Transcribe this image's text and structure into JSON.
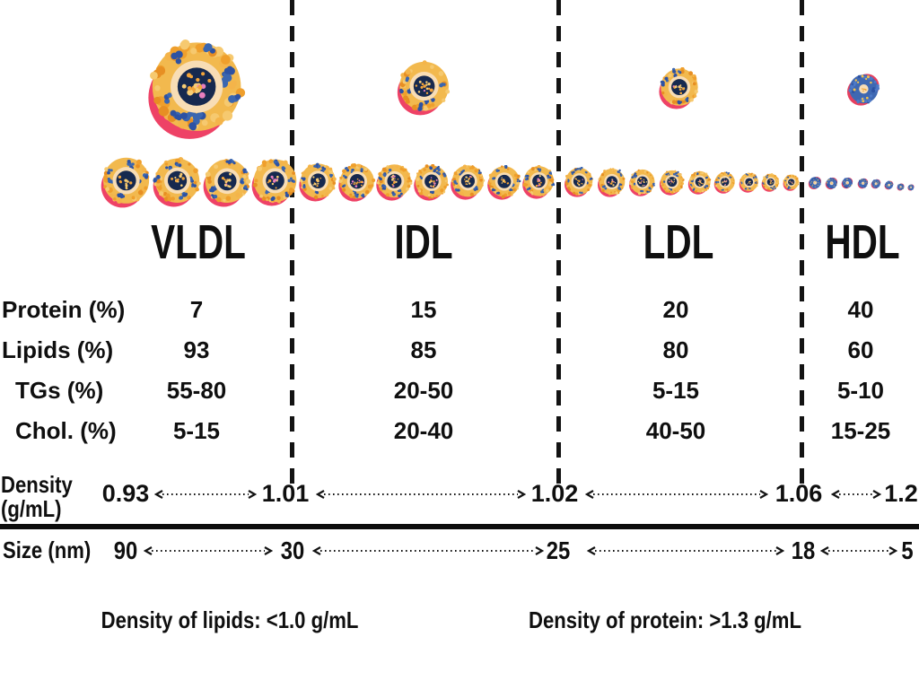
{
  "columns": [
    {
      "name": "VLDL",
      "protein": "7",
      "lipids": "93",
      "tgs": "55-80",
      "chol": "5-15"
    },
    {
      "name": "IDL",
      "protein": "15",
      "lipids": "85",
      "tgs": "20-50",
      "chol": "20-40"
    },
    {
      "name": "LDL",
      "protein": "20",
      "lipids": "80",
      "tgs": "5-15",
      "chol": "40-50"
    },
    {
      "name": "HDL",
      "protein": "40",
      "lipids": "60",
      "tgs": "5-10",
      "chol": "15-25"
    }
  ],
  "row_labels": {
    "protein": "Protein (%)",
    "lipids": "Lipids (%)",
    "tgs": "TGs (%)",
    "chol": "Chol. (%)"
  },
  "density_scale": {
    "label_line1": "Density",
    "label_line2": "(g/mL)",
    "values": [
      "0.93",
      "1.01",
      "1.02",
      "1.06",
      "1.2"
    ]
  },
  "size_scale": {
    "label": "Size (nm)",
    "values": [
      "90",
      "30",
      "25",
      "18",
      "5"
    ]
  },
  "footnotes": {
    "lipids": "Density of lipids: <1.0 g/mL",
    "protein": "Density of protein: >1.3 g/mL"
  },
  "icon_colors": {
    "lipoprotein_body": "#f2b94e",
    "lipoprotein_outer_dots": "#ef9f2c",
    "protein_blue": "#3a66b0",
    "inner_ring_tan": "#f8ddb5",
    "core_navy": "#16294f",
    "apolipoprotein_pink": "#ee4266",
    "hdl_body_blue": "#3f68b2",
    "line_black": "#131313"
  }
}
